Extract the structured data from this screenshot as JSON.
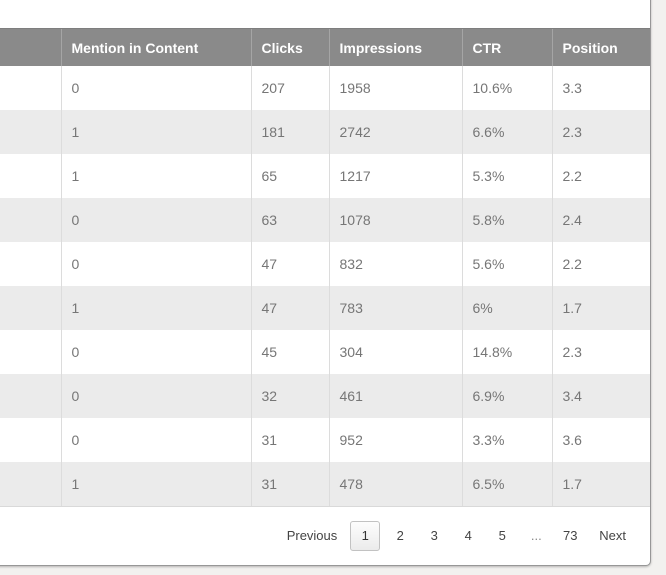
{
  "table": {
    "columns": [
      {
        "label": ""
      },
      {
        "label": "Mention in Content"
      },
      {
        "label": "Clicks"
      },
      {
        "label": "Impressions"
      },
      {
        "label": "CTR"
      },
      {
        "label": "Position"
      }
    ],
    "rows": [
      {
        "mention": "0",
        "clicks": "207",
        "impressions": "1958",
        "ctr": "10.6%",
        "position": "3.3"
      },
      {
        "mention": "1",
        "clicks": "181",
        "impressions": "2742",
        "ctr": "6.6%",
        "position": "2.3"
      },
      {
        "mention": "1",
        "clicks": "65",
        "impressions": "1217",
        "ctr": "5.3%",
        "position": "2.2"
      },
      {
        "mention": "0",
        "clicks": "63",
        "impressions": "1078",
        "ctr": "5.8%",
        "position": "2.4"
      },
      {
        "mention": "0",
        "clicks": "47",
        "impressions": "832",
        "ctr": "5.6%",
        "position": "2.2"
      },
      {
        "mention": "1",
        "clicks": "47",
        "impressions": "783",
        "ctr": "6%",
        "position": "1.7"
      },
      {
        "mention": "0",
        "clicks": "45",
        "impressions": "304",
        "ctr": "14.8%",
        "position": "2.3"
      },
      {
        "mention": "0",
        "clicks": "32",
        "impressions": "461",
        "ctr": "6.9%",
        "position": "3.4"
      },
      {
        "mention": "0",
        "clicks": "31",
        "impressions": "952",
        "ctr": "3.3%",
        "position": "3.6"
      },
      {
        "mention": "1",
        "clicks": "31",
        "impressions": "478",
        "ctr": "6.5%",
        "position": "1.7"
      }
    ]
  },
  "pagination": {
    "previous_label": "Previous",
    "pages": [
      "1",
      "2",
      "3",
      "4",
      "5"
    ],
    "current_page": "1",
    "ellipsis": "...",
    "last_page": "73",
    "next_label": "Next"
  },
  "colors": {
    "header_bg": "#8a8a8a",
    "header_text": "#ffffff",
    "row_alt_bg": "#ebebeb",
    "cell_text": "#767676",
    "cell_border": "#dcdcdc",
    "panel_border": "#979797",
    "page_bg": "#f2f1ef",
    "pager_text": "#444444"
  }
}
